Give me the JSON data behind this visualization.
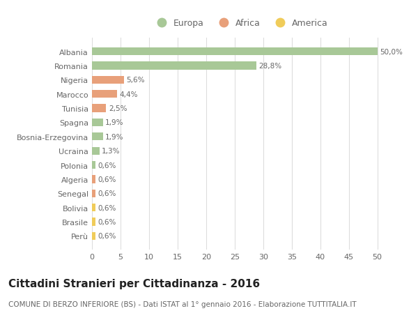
{
  "countries": [
    "Albania",
    "Romania",
    "Nigeria",
    "Marocco",
    "Tunisia",
    "Spagna",
    "Bosnia-Erzegovina",
    "Ucraina",
    "Polonia",
    "Algeria",
    "Senegal",
    "Bolivia",
    "Brasile",
    "Perù"
  ],
  "values": [
    50.0,
    28.8,
    5.6,
    4.4,
    2.5,
    1.9,
    1.9,
    1.3,
    0.6,
    0.6,
    0.6,
    0.6,
    0.6,
    0.6
  ],
  "labels": [
    "50,0%",
    "28,8%",
    "5,6%",
    "4,4%",
    "2,5%",
    "1,9%",
    "1,9%",
    "1,3%",
    "0,6%",
    "0,6%",
    "0,6%",
    "0,6%",
    "0,6%",
    "0,6%"
  ],
  "continents": [
    "Europa",
    "Europa",
    "Africa",
    "Africa",
    "Africa",
    "Europa",
    "Europa",
    "Europa",
    "Europa",
    "Africa",
    "Africa",
    "America",
    "America",
    "America"
  ],
  "colors": {
    "Europa": "#a8c897",
    "Africa": "#e8a07a",
    "America": "#f0cc5a"
  },
  "title": "Cittadini Stranieri per Cittadinanza - 2016",
  "subtitle": "COMUNE DI BERZO INFERIORE (BS) - Dati ISTAT al 1° gennaio 2016 - Elaborazione TUTTITALIA.IT",
  "xlim": [
    0,
    52
  ],
  "xticks": [
    0,
    5,
    10,
    15,
    20,
    25,
    30,
    35,
    40,
    45,
    50
  ],
  "background_color": "#ffffff",
  "grid_color": "#dddddd",
  "title_fontsize": 11,
  "subtitle_fontsize": 7.5,
  "label_fontsize": 7.5,
  "tick_fontsize": 8,
  "legend_fontsize": 9
}
